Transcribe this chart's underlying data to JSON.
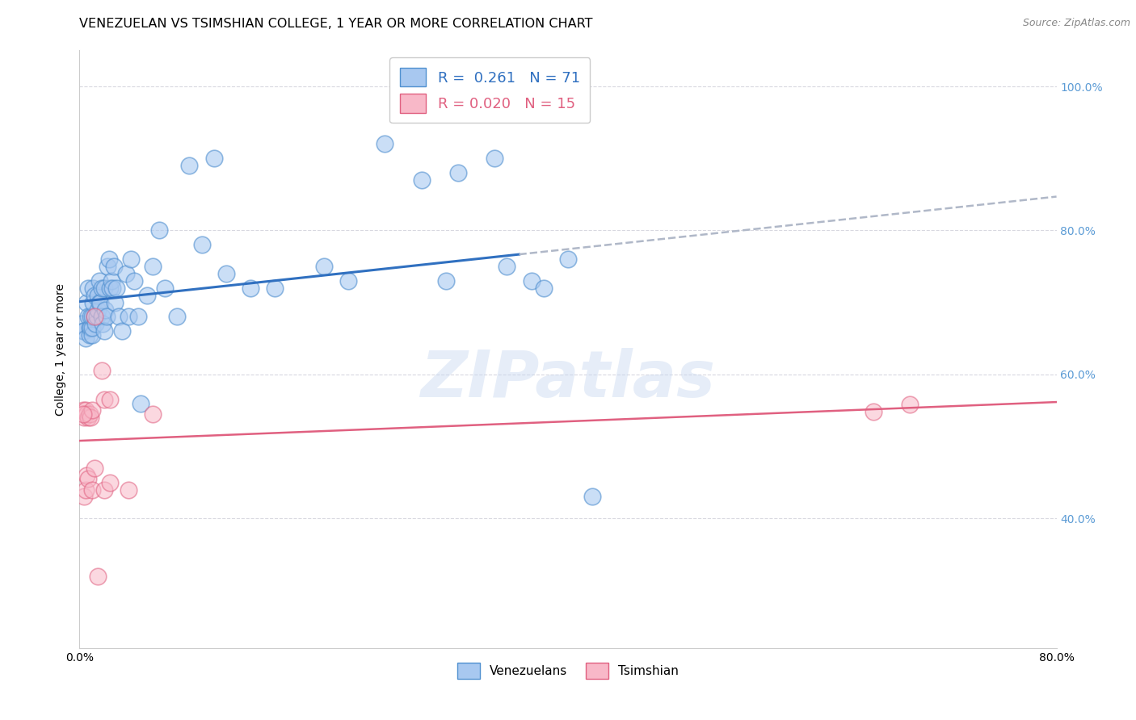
{
  "title": "VENEZUELAN VS TSIMSHIAN COLLEGE, 1 YEAR OR MORE CORRELATION CHART",
  "source": "Source: ZipAtlas.com",
  "ylabel": "College, 1 year or more",
  "watermark": "ZIPatlas",
  "xmin": 0.0,
  "xmax": 0.8,
  "ymin": 0.22,
  "ymax": 1.05,
  "xtick_pos": [
    0.0,
    0.1,
    0.2,
    0.3,
    0.4,
    0.5,
    0.6,
    0.7,
    0.8
  ],
  "xtick_labels": [
    "0.0%",
    "",
    "",
    "",
    "",
    "",
    "",
    "",
    "80.0%"
  ],
  "ytick_pos": [
    0.4,
    0.6,
    0.8,
    1.0
  ],
  "ytick_labels": [
    "40.0%",
    "60.0%",
    "80.0%",
    "100.0%"
  ],
  "legend_r1": "R =  0.261",
  "legend_n1": "N = 71",
  "legend_r2": "R = 0.020",
  "legend_n2": "N = 15",
  "blue_fill": "#a8c8f0",
  "blue_edge": "#5090d0",
  "pink_fill": "#f8b8c8",
  "pink_edge": "#e06080",
  "line_blue": "#3070c0",
  "line_pink": "#e06080",
  "line_gray": "#b0b8c8",
  "bg_color": "#ffffff",
  "grid_color": "#d8d8e0",
  "right_tick_color": "#5b9bd5",
  "title_fontsize": 11.5,
  "label_fontsize": 10,
  "tick_fontsize": 10,
  "venezuelan_x": [
    0.002,
    0.003,
    0.004,
    0.005,
    0.006,
    0.007,
    0.007,
    0.008,
    0.008,
    0.009,
    0.009,
    0.01,
    0.01,
    0.01,
    0.011,
    0.011,
    0.012,
    0.012,
    0.013,
    0.014,
    0.015,
    0.015,
    0.016,
    0.016,
    0.017,
    0.018,
    0.018,
    0.019,
    0.02,
    0.02,
    0.021,
    0.022,
    0.023,
    0.024,
    0.025,
    0.026,
    0.027,
    0.028,
    0.029,
    0.03,
    0.032,
    0.035,
    0.038,
    0.04,
    0.042,
    0.045,
    0.048,
    0.05,
    0.055,
    0.06,
    0.065,
    0.07,
    0.08,
    0.09,
    0.1,
    0.11,
    0.12,
    0.14,
    0.16,
    0.2,
    0.22,
    0.25,
    0.28,
    0.31,
    0.34,
    0.37,
    0.4,
    0.42,
    0.35,
    0.38,
    0.3
  ],
  "venezuelan_y": [
    0.67,
    0.66,
    0.66,
    0.65,
    0.7,
    0.72,
    0.68,
    0.665,
    0.655,
    0.665,
    0.68,
    0.655,
    0.665,
    0.68,
    0.7,
    0.72,
    0.71,
    0.68,
    0.67,
    0.68,
    0.69,
    0.71,
    0.73,
    0.7,
    0.7,
    0.68,
    0.72,
    0.67,
    0.66,
    0.72,
    0.69,
    0.68,
    0.75,
    0.76,
    0.72,
    0.73,
    0.72,
    0.75,
    0.7,
    0.72,
    0.68,
    0.66,
    0.74,
    0.68,
    0.76,
    0.73,
    0.68,
    0.56,
    0.71,
    0.75,
    0.8,
    0.72,
    0.68,
    0.89,
    0.78,
    0.9,
    0.74,
    0.72,
    0.72,
    0.75,
    0.73,
    0.92,
    0.87,
    0.88,
    0.9,
    0.73,
    0.76,
    0.43,
    0.75,
    0.72,
    0.73
  ],
  "tsimshian_x": [
    0.003,
    0.004,
    0.005,
    0.006,
    0.007,
    0.008,
    0.009,
    0.01,
    0.012,
    0.018,
    0.02,
    0.025,
    0.06,
    0.65,
    0.68
  ],
  "tsimshian_y": [
    0.55,
    0.54,
    0.55,
    0.545,
    0.54,
    0.545,
    0.54,
    0.55,
    0.68,
    0.605,
    0.565,
    0.565,
    0.545,
    0.548,
    0.558
  ],
  "tsimshian_low_x": [
    0.003,
    0.004,
    0.005,
    0.006,
    0.007,
    0.01,
    0.012,
    0.02,
    0.025,
    0.04
  ],
  "tsimshian_low_y": [
    0.545,
    0.43,
    0.44,
    0.46,
    0.455,
    0.44,
    0.47,
    0.44,
    0.45,
    0.44
  ],
  "tsim_outlier_x": [
    0.015
  ],
  "tsim_outlier_y": [
    0.32
  ]
}
